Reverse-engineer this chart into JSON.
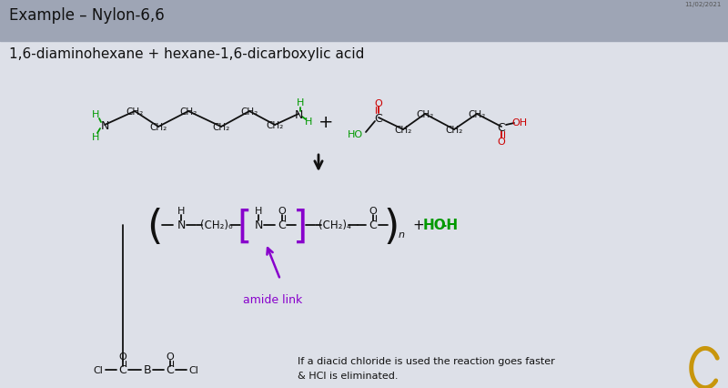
{
  "title": "Example – Nylon-6,6",
  "header_bg": "#9ea5b5",
  "slide_bg": "#dde0e8",
  "title_color": "#111111",
  "subtitle": "1,6-diaminohexane + hexane-1,6-dicarboxylic acid",
  "amide_link_label": "amide link",
  "amide_link_color": "#8800cc",
  "ho_h_color": "#009900",
  "green_color": "#009900",
  "red_color": "#cc0000",
  "footer_text1": "If a diacid chloride is used the reaction goes faster",
  "footer_text2": "& HCl is eliminated.",
  "watermark": "11/02/2021"
}
